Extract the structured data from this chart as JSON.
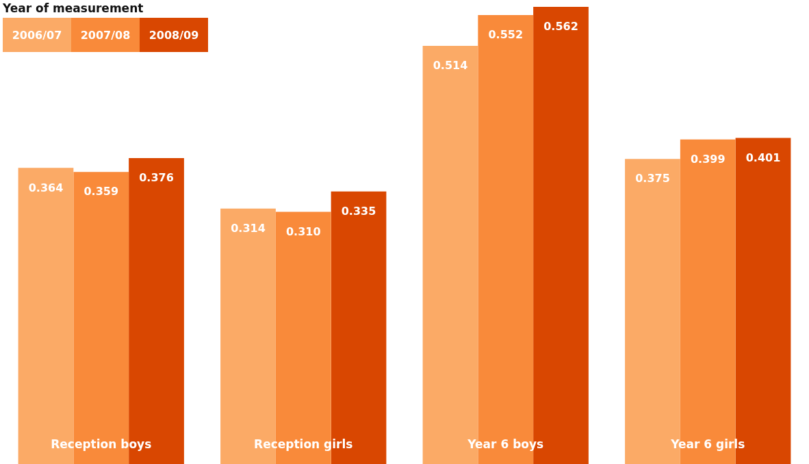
{
  "chart_data": {
    "type": "bar",
    "legend_title": "Year of measurement",
    "legend": "top left",
    "categories": [
      "Reception boys",
      "Reception girls",
      "Year 6 boys",
      "Year 6 girls"
    ],
    "series": [
      {
        "name": "2006/07",
        "color": "#fbaa66",
        "values": [
          0.364,
          0.314,
          0.514,
          0.375
        ],
        "value_labels": [
          "0.364",
          "0.314",
          "0.514",
          "0.375"
        ]
      },
      {
        "name": "2007/08",
        "color": "#f98a3a",
        "values": [
          0.359,
          0.31,
          0.552,
          0.399
        ],
        "value_labels": [
          "0.359",
          "0.310",
          "0.552",
          "0.399"
        ]
      },
      {
        "name": "2008/09",
        "color": "#d94701",
        "values": [
          0.376,
          0.335,
          0.562,
          0.401
        ],
        "value_labels": [
          "0.376",
          "0.335",
          "0.562",
          "0.401"
        ]
      }
    ]
  }
}
